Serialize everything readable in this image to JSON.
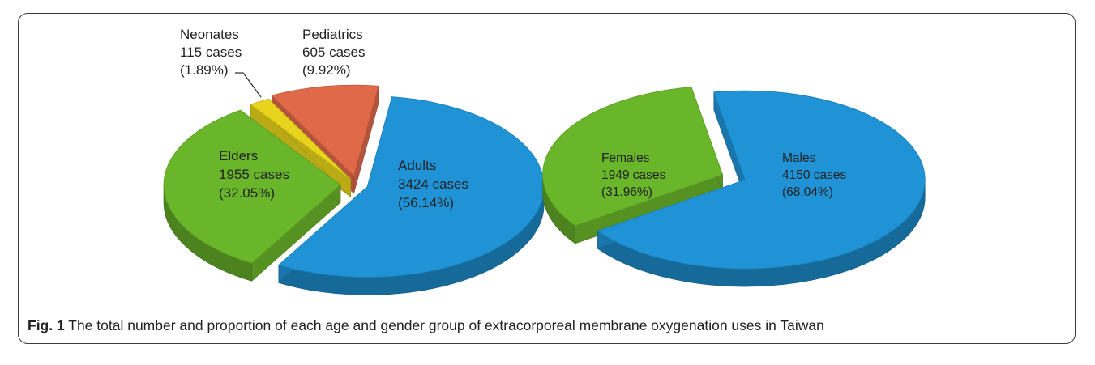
{
  "chart_data": [
    {
      "type": "pie",
      "style": "3d-exploded",
      "slices": [
        {
          "name": "Adults",
          "value": 3424,
          "cases_label": "3424 cases",
          "percent_label": "(56.14%)",
          "color": "#1f93d6"
        },
        {
          "name": "Elders",
          "value": 1955,
          "cases_label": "1955 cases",
          "percent_label": "(32.05%)",
          "color": "#6ab62a"
        },
        {
          "name": "Neonates",
          "value": 115,
          "cases_label": "115 cases",
          "percent_label": "(1.89%)",
          "color": "#e8d41c"
        },
        {
          "name": "Pediatrics",
          "value": 605,
          "cases_label": "605 cases",
          "percent_label": "(9.92%)",
          "color": "#e0694a"
        }
      ]
    },
    {
      "type": "pie",
      "style": "3d-exploded",
      "slices": [
        {
          "name": "Males",
          "value": 4150,
          "cases_label": "4150 cases",
          "percent_label": "(68.04%)",
          "color": "#1f93d6"
        },
        {
          "name": "Females",
          "value": 1949,
          "cases_label": "1949 cases",
          "percent_label": "(31.96%)",
          "color": "#6ab62a"
        }
      ]
    }
  ],
  "caption": {
    "fig_label": "Fig. 1",
    "text": "The total number and proportion of each age and gender group of extracorporeal membrane oxygenation uses in Taiwan"
  }
}
